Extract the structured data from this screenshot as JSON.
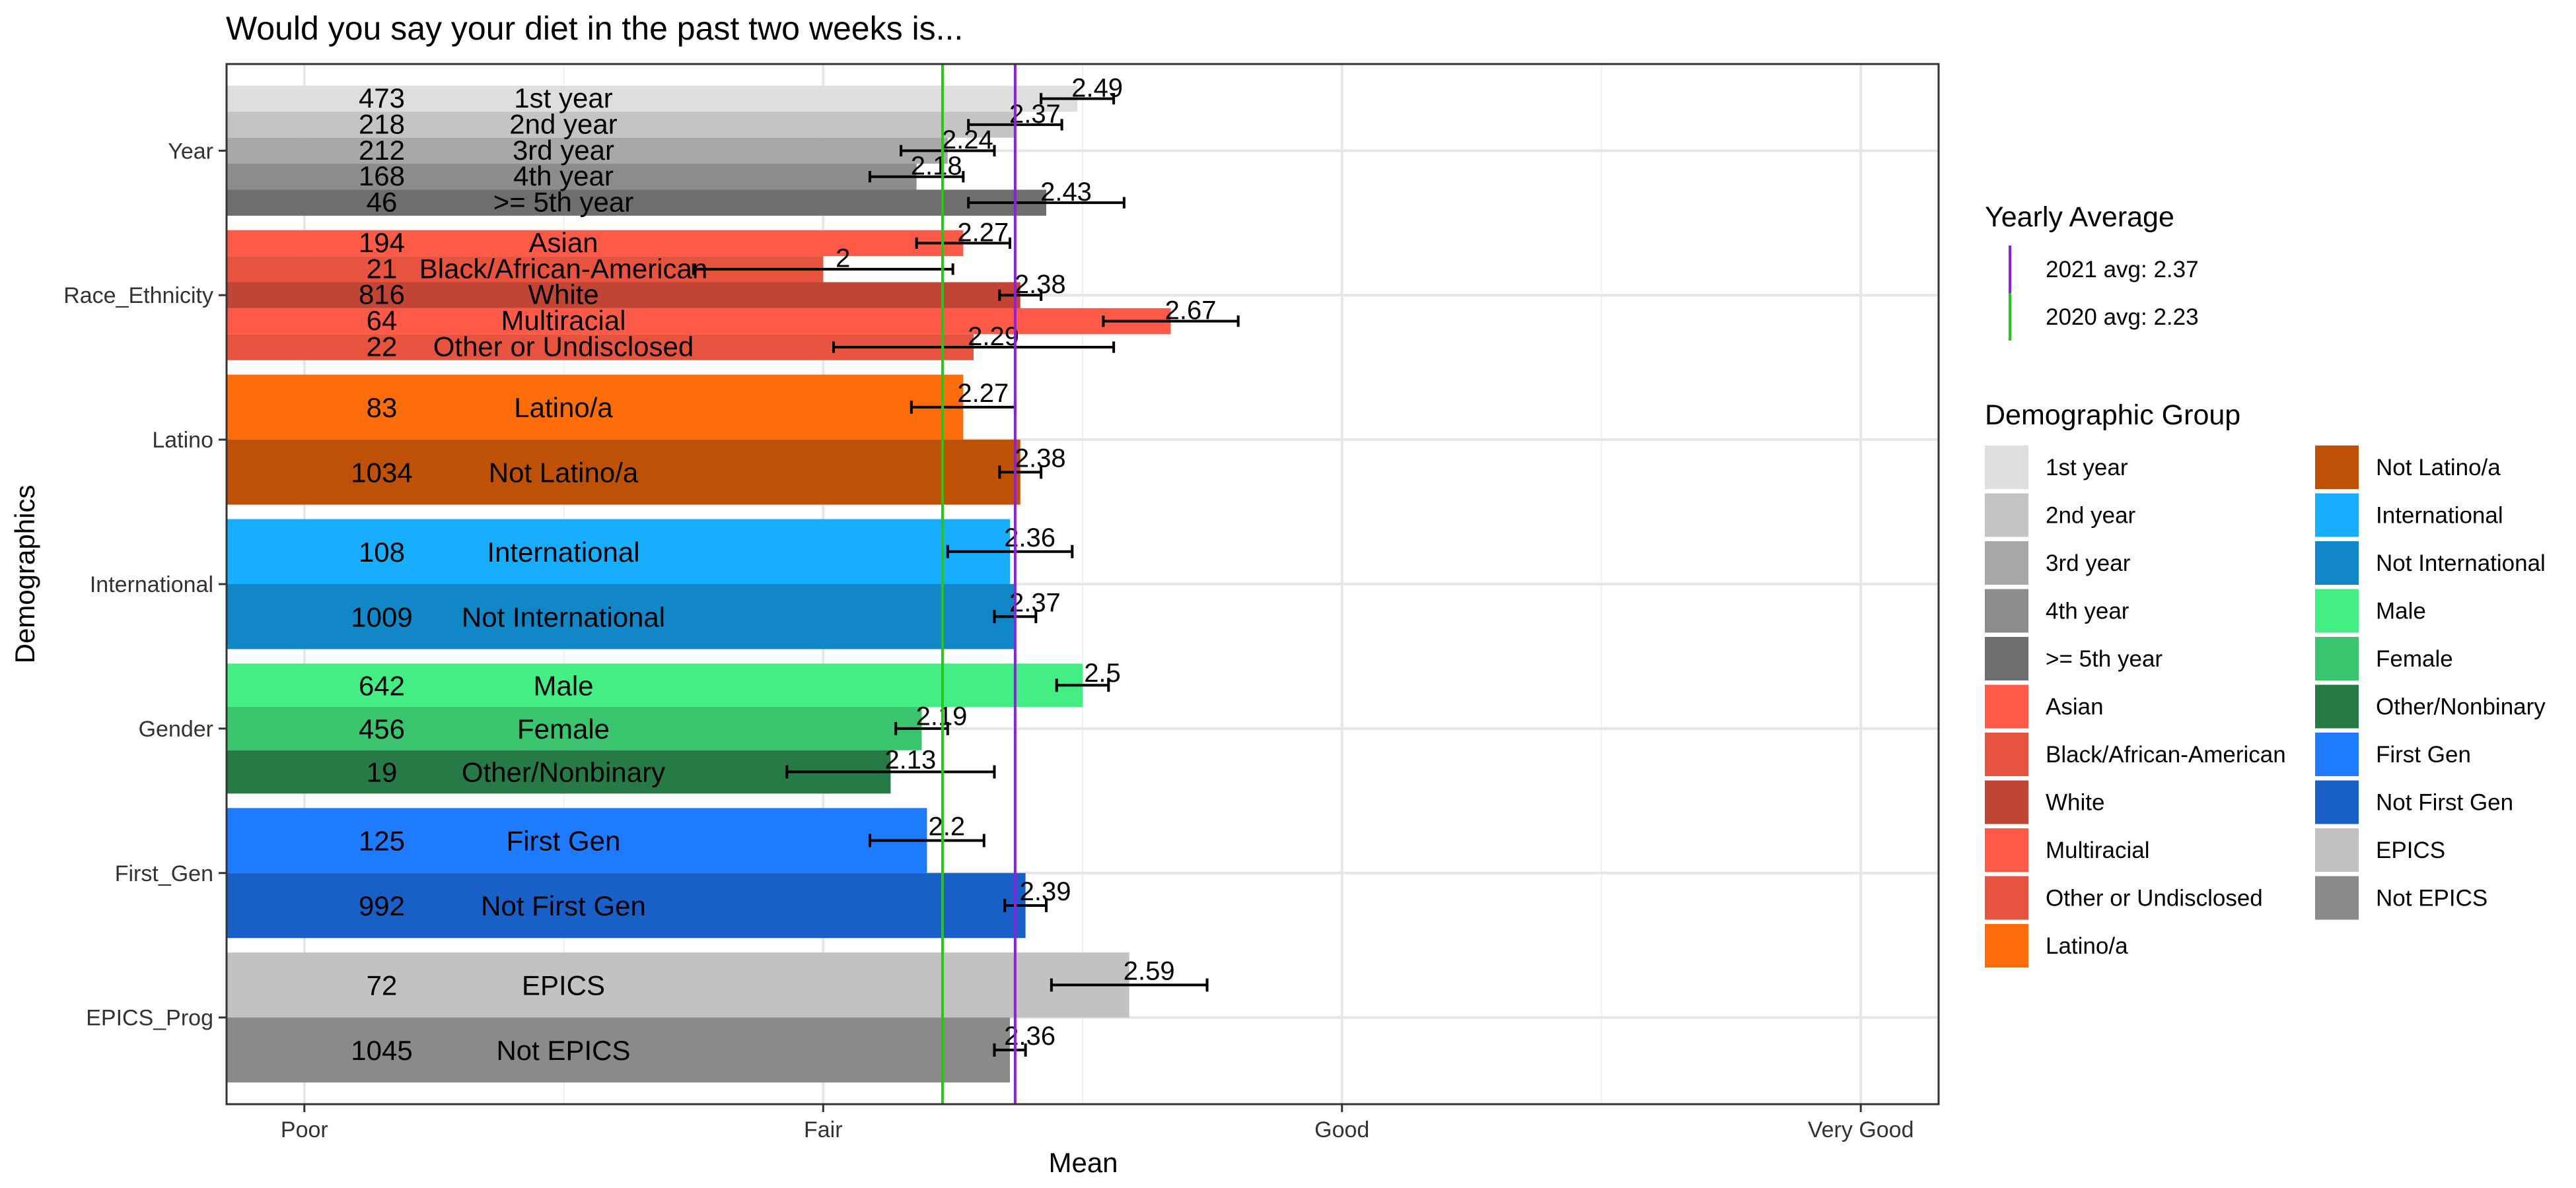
{
  "chart_data": {
    "type": "bar",
    "orientation": "horizontal",
    "title": "Would you say your diet in the past two weeks is...",
    "xlabel": "Mean",
    "ylabel": "Demographics",
    "x_ticks": [
      {
        "value": 1,
        "label": "Poor"
      },
      {
        "value": 2,
        "label": "Fair"
      },
      {
        "value": 3,
        "label": "Good"
      },
      {
        "value": 4,
        "label": "Very Good"
      }
    ],
    "xlim": [
      0.85,
      4.15
    ],
    "grid": true,
    "groups": [
      {
        "name": "Year",
        "bars": [
          {
            "label": "1st year",
            "n": "473",
            "mean": 2.49,
            "value_label": "2.49",
            "err": [
              2.42,
              2.56
            ],
            "color": "#DEDEDE"
          },
          {
            "label": "2nd year",
            "n": "218",
            "mean": 2.37,
            "value_label": "2.37",
            "err": [
              2.28,
              2.46
            ],
            "color": "#C4C4C4"
          },
          {
            "label": "3rd year",
            "n": "212",
            "mean": 2.24,
            "value_label": "2.24",
            "err": [
              2.15,
              2.33
            ],
            "color": "#A8A8A8"
          },
          {
            "label": "4th year",
            "n": "168",
            "mean": 2.18,
            "value_label": "2.18",
            "err": [
              2.09,
              2.27
            ],
            "color": "#8C8C8C"
          },
          {
            "label": ">= 5th year",
            "n": "46",
            "mean": 2.43,
            "value_label": "2.43",
            "err": [
              2.28,
              2.58
            ],
            "color": "#6E6E6E"
          }
        ]
      },
      {
        "name": "Race_Ethnicity",
        "bars": [
          {
            "label": "Asian",
            "n": "194",
            "mean": 2.27,
            "value_label": "2.27",
            "err": [
              2.18,
              2.36
            ],
            "color": "#FF5A47"
          },
          {
            "label": "Black/African-American",
            "n": "21",
            "mean": 2.0,
            "value_label": "2",
            "err": [
              1.75,
              2.25
            ],
            "color": "#E8533F"
          },
          {
            "label": "White",
            "n": "816",
            "mean": 2.38,
            "value_label": "2.38",
            "err": [
              2.34,
              2.42
            ],
            "color": "#C24434"
          },
          {
            "label": "Multiracial",
            "n": "64",
            "mean": 2.67,
            "value_label": "2.67",
            "err": [
              2.54,
              2.8
            ],
            "color": "#FF5A47"
          },
          {
            "label": "Other or Undisclosed",
            "n": "22",
            "mean": 2.29,
            "value_label": "2.29",
            "err": [
              2.02,
              2.56
            ],
            "color": "#E8533F"
          }
        ]
      },
      {
        "name": "Latino",
        "bars": [
          {
            "label": "Latino/a",
            "n": "83",
            "mean": 2.27,
            "value_label": "2.27",
            "err": [
              2.17,
              2.37
            ],
            "color": "#FF6D0A"
          },
          {
            "label": "Not Latino/a",
            "n": "1034",
            "mean": 2.38,
            "value_label": "2.38",
            "err": [
              2.34,
              2.42
            ],
            "color": "#BF5107"
          }
        ]
      },
      {
        "name": "International",
        "bars": [
          {
            "label": "International",
            "n": "108",
            "mean": 2.36,
            "value_label": "2.36",
            "err": [
              2.24,
              2.48
            ],
            "color": "#18AEFF"
          },
          {
            "label": "Not International",
            "n": "1009",
            "mean": 2.37,
            "value_label": "2.37",
            "err": [
              2.33,
              2.41
            ],
            "color": "#1287C7"
          }
        ]
      },
      {
        "name": "Gender",
        "bars": [
          {
            "label": "Male",
            "n": "642",
            "mean": 2.5,
            "value_label": "2.5",
            "err": [
              2.45,
              2.55
            ],
            "color": "#43EF85"
          },
          {
            "label": "Female",
            "n": "456",
            "mean": 2.19,
            "value_label": "2.19",
            "err": [
              2.14,
              2.24
            ],
            "color": "#3AC46E"
          },
          {
            "label": "Other/Nonbinary",
            "n": "19",
            "mean": 2.13,
            "value_label": "2.13",
            "err": [
              1.93,
              2.33
            ],
            "color": "#267A45"
          }
        ]
      },
      {
        "name": "First_Gen",
        "bars": [
          {
            "label": "First Gen",
            "n": "125",
            "mean": 2.2,
            "value_label": "2.2",
            "err": [
              2.09,
              2.31
            ],
            "color": "#1E7BFF"
          },
          {
            "label": "Not First Gen",
            "n": "992",
            "mean": 2.39,
            "value_label": "2.39",
            "err": [
              2.35,
              2.43
            ],
            "color": "#185FC7"
          }
        ]
      },
      {
        "name": "EPICS_Prog",
        "bars": [
          {
            "label": "EPICS",
            "n": "72",
            "mean": 2.59,
            "value_label": "2.59",
            "err": [
              2.44,
              2.74
            ],
            "color": "#C2C2C2"
          },
          {
            "label": "Not EPICS",
            "n": "1045",
            "mean": 2.36,
            "value_label": "2.36",
            "err": [
              2.33,
              2.39
            ],
            "color": "#8A8A8A"
          }
        ]
      }
    ],
    "reference_lines": [
      {
        "label": "2021 avg: 2.37",
        "value": 2.37,
        "color": "#8E1FE0"
      },
      {
        "label": "2020 avg: 2.23",
        "value": 2.23,
        "color": "#2CC41C"
      }
    ],
    "legend": {
      "position": "right",
      "lines_title": "Yearly Average",
      "groups_title": "Demographic Group",
      "items": [
        {
          "label": "1st year",
          "color": "#DEDEDE"
        },
        {
          "label": "2nd year",
          "color": "#C4C4C4"
        },
        {
          "label": "3rd year",
          "color": "#A8A8A8"
        },
        {
          "label": "4th year",
          "color": "#8C8C8C"
        },
        {
          "label": ">= 5th year",
          "color": "#6E6E6E"
        },
        {
          "label": "Asian",
          "color": "#FF5A47"
        },
        {
          "label": "Black/African-American",
          "color": "#E8533F"
        },
        {
          "label": "White",
          "color": "#C24434"
        },
        {
          "label": "Multiracial",
          "color": "#FF5A47"
        },
        {
          "label": "Other or Undisclosed",
          "color": "#E8533F"
        },
        {
          "label": "Latino/a",
          "color": "#FF6D0A"
        },
        {
          "label": "Not Latino/a",
          "color": "#BF5107"
        },
        {
          "label": "International",
          "color": "#18AEFF"
        },
        {
          "label": "Not International",
          "color": "#1287C7"
        },
        {
          "label": "Male",
          "color": "#43EF85"
        },
        {
          "label": "Female",
          "color": "#3AC46E"
        },
        {
          "label": "Other/Nonbinary",
          "color": "#267A45"
        },
        {
          "label": "First Gen",
          "color": "#1E7BFF"
        },
        {
          "label": "Not First Gen",
          "color": "#185FC7"
        },
        {
          "label": "EPICS",
          "color": "#C2C2C2"
        },
        {
          "label": "Not EPICS",
          "color": "#8A8A8A"
        }
      ]
    }
  }
}
